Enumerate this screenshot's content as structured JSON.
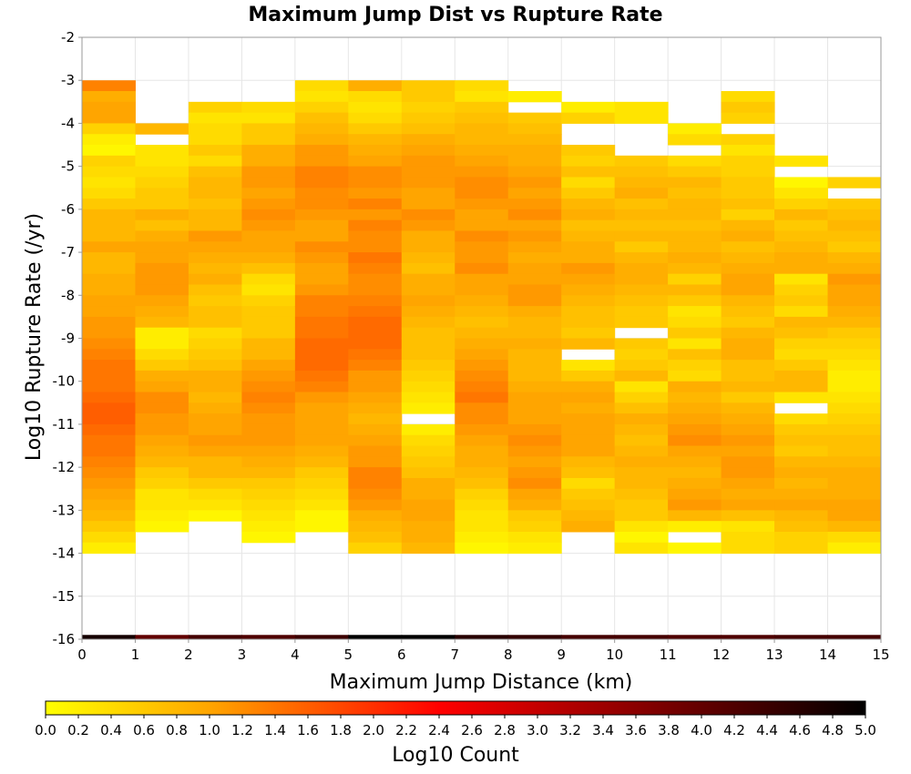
{
  "chart_data": {
    "type": "heatmap",
    "title": "Maximum Jump Dist vs Rupture Rate",
    "xlabel": "Maximum Jump Distance (km)",
    "ylabel": "Log10 Rupture Rate (/yr)",
    "xlim": [
      0,
      15
    ],
    "ylim": [
      -16,
      -2
    ],
    "x_ticks": [
      "0",
      "1",
      "2",
      "3",
      "4",
      "5",
      "6",
      "7",
      "8",
      "9",
      "10",
      "11",
      "12",
      "13",
      "14",
      "15"
    ],
    "y_ticks": [
      "-2",
      "-3",
      "-4",
      "-5",
      "-6",
      "-7",
      "-8",
      "-9",
      "-10",
      "-11",
      "-12",
      "-13",
      "-14",
      "-15",
      "-16"
    ],
    "x_bin_width": 1,
    "y_bin_width": 0.25,
    "colorbar": {
      "label": "Log10 Count",
      "range": [
        0,
        5
      ],
      "ticks": [
        "0.0",
        "0.2",
        "0.4",
        "0.6",
        "0.8",
        "1.0",
        "1.2",
        "1.4",
        "1.6",
        "1.8",
        "2.0",
        "2.2",
        "2.4",
        "2.6",
        "2.8",
        "3.0",
        "3.2",
        "3.4",
        "3.6",
        "3.8",
        "4.0",
        "4.2",
        "4.4",
        "4.6",
        "4.8",
        "5.0"
      ],
      "colors": [
        "#ffff00",
        "#ffa500",
        "#ff0000",
        "#800000",
        "#000000"
      ]
    },
    "grid": true,
    "column_lower_bin_value": [
      4.8,
      4.0,
      4.3,
      4.2,
      4.4,
      5.0,
      5.0,
      4.6,
      4.5,
      4.3,
      4.3,
      4.2,
      4.2,
      4.3,
      4.3
    ],
    "column_bin_count": 44,
    "columns": [
      [
        1.3,
        0.9,
        1.0,
        1.0,
        0.5,
        0.2,
        0.1,
        0.5,
        0.4,
        0.3,
        0.4,
        0.6,
        0.8,
        0.8,
        0.8,
        1.0,
        0.8,
        0.8,
        0.9,
        0.9,
        1.0,
        1.0,
        1.1,
        1.1,
        1.2,
        1.3,
        1.4,
        1.4,
        1.4,
        1.5,
        1.6,
        1.6,
        1.5,
        1.4,
        1.4,
        1.3,
        1.2,
        1.1,
        1.0,
        0.9,
        0.8,
        0.6,
        0.4,
        0.2
      ],
      [
        null,
        null,
        null,
        null,
        0.8,
        null,
        0.3,
        0.3,
        0.4,
        0.5,
        0.6,
        0.6,
        0.9,
        0.7,
        0.9,
        1.0,
        1.0,
        1.1,
        1.1,
        1.1,
        1.0,
        0.9,
        0.8,
        0.2,
        0.2,
        0.4,
        0.6,
        0.9,
        1.0,
        1.2,
        1.2,
        1.1,
        1.1,
        1.0,
        0.9,
        0.8,
        0.6,
        0.5,
        0.3,
        0.3,
        0.2,
        0.1,
        null,
        null
      ],
      [
        null,
        null,
        0.5,
        0.3,
        0.4,
        0.4,
        0.6,
        0.4,
        0.7,
        0.8,
        0.8,
        0.7,
        0.8,
        0.8,
        1.1,
        1.0,
        0.9,
        0.8,
        0.9,
        0.7,
        0.6,
        0.7,
        0.7,
        0.4,
        0.5,
        0.6,
        0.7,
        0.9,
        0.9,
        0.8,
        0.9,
        1.0,
        1.0,
        1.1,
        1.0,
        0.8,
        0.8,
        0.6,
        0.4,
        0.3,
        0.1,
        null,
        null,
        null
      ],
      [
        null,
        null,
        0.4,
        0.3,
        0.6,
        0.6,
        0.9,
        0.9,
        1.1,
        1.1,
        1.0,
        1.1,
        1.2,
        1.1,
        1.0,
        1.0,
        0.9,
        0.7,
        0.4,
        0.3,
        0.5,
        0.6,
        0.6,
        0.6,
        0.8,
        0.8,
        1.0,
        1.1,
        1.2,
        1.3,
        1.2,
        1.1,
        1.1,
        1.1,
        1.0,
        0.9,
        0.8,
        0.6,
        0.5,
        0.4,
        0.3,
        0.2,
        0.1,
        null
      ],
      [
        0.4,
        0.3,
        0.5,
        0.7,
        0.8,
        0.9,
        1.1,
        1.1,
        1.3,
        1.3,
        1.2,
        1.2,
        1.1,
        1.0,
        1.0,
        1.2,
        1.1,
        1.0,
        1.0,
        1.1,
        1.3,
        1.3,
        1.4,
        1.4,
        1.5,
        1.5,
        1.5,
        1.4,
        1.3,
        1.1,
        1.0,
        1.0,
        1.0,
        1.0,
        0.9,
        0.8,
        0.6,
        0.5,
        0.4,
        0.3,
        0.1,
        0.1,
        null,
        null
      ],
      [
        0.9,
        0.4,
        0.3,
        0.4,
        0.6,
        0.8,
        0.9,
        1.0,
        1.2,
        1.2,
        1.1,
        1.3,
        1.1,
        1.3,
        1.2,
        1.2,
        1.4,
        1.3,
        1.2,
        1.2,
        1.3,
        1.4,
        1.5,
        1.5,
        1.5,
        1.4,
        1.3,
        1.1,
        1.1,
        1.0,
        0.9,
        0.8,
        0.9,
        1.0,
        1.1,
        1.1,
        1.3,
        1.3,
        1.2,
        1.1,
        0.9,
        0.8,
        0.7,
        0.5
      ],
      [
        0.6,
        0.6,
        0.5,
        0.6,
        0.7,
        0.9,
        1.0,
        1.1,
        1.1,
        1.1,
        1.0,
        1.0,
        1.2,
        1.1,
        0.9,
        0.9,
        0.8,
        0.7,
        0.9,
        0.9,
        1.0,
        0.9,
        0.8,
        0.7,
        0.7,
        0.7,
        0.6,
        0.5,
        0.4,
        0.3,
        0.2,
        null,
        0.2,
        0.4,
        0.5,
        0.6,
        0.7,
        0.9,
        0.9,
        1.0,
        1.0,
        0.9,
        0.9,
        0.8
      ],
      [
        0.4,
        0.3,
        0.6,
        0.7,
        0.8,
        0.8,
        0.9,
        1.0,
        1.1,
        1.2,
        1.2,
        1.1,
        1.0,
        1.0,
        1.2,
        1.1,
        1.1,
        1.2,
        1.0,
        1.0,
        0.9,
        0.8,
        0.7,
        0.8,
        0.9,
        1.0,
        1.1,
        1.2,
        1.3,
        1.4,
        1.2,
        1.2,
        1.1,
        1.0,
        0.9,
        0.9,
        0.8,
        0.7,
        0.5,
        0.4,
        0.3,
        0.3,
        0.2,
        0.1
      ],
      [
        null,
        0.2,
        null,
        0.6,
        0.7,
        0.8,
        0.9,
        0.9,
        1.0,
        1.1,
        1.0,
        1.1,
        1.2,
        1.0,
        1.1,
        1.0,
        0.9,
        1.0,
        1.0,
        1.1,
        1.1,
        0.9,
        0.8,
        0.8,
        0.9,
        0.8,
        0.8,
        0.8,
        0.9,
        1.0,
        1.0,
        1.0,
        1.1,
        1.2,
        1.1,
        1.0,
        1.1,
        1.2,
        1.0,
        0.9,
        0.6,
        0.5,
        0.3,
        0.2
      ],
      [
        null,
        null,
        0.2,
        0.5,
        null,
        null,
        0.6,
        0.5,
        0.7,
        0.4,
        0.6,
        0.8,
        0.9,
        0.7,
        0.8,
        0.9,
        0.9,
        1.1,
        1.0,
        0.9,
        0.8,
        0.7,
        0.7,
        0.6,
        0.8,
        null,
        0.3,
        0.6,
        0.9,
        1.0,
        0.9,
        1.0,
        1.0,
        1.0,
        1.0,
        0.8,
        0.7,
        0.4,
        0.6,
        0.7,
        0.8,
        0.9,
        null,
        null
      ],
      [
        null,
        null,
        0.3,
        0.3,
        null,
        null,
        null,
        0.6,
        0.7,
        0.8,
        0.9,
        0.7,
        0.8,
        0.7,
        0.8,
        0.6,
        0.8,
        0.9,
        0.9,
        0.8,
        0.7,
        0.6,
        0.6,
        null,
        0.6,
        0.5,
        0.6,
        0.8,
        0.3,
        0.5,
        0.7,
        0.9,
        0.8,
        0.7,
        0.8,
        0.9,
        0.8,
        0.8,
        0.7,
        0.6,
        0.6,
        0.3,
        0.1,
        0.3
      ],
      [
        null,
        null,
        null,
        null,
        0.2,
        0.4,
        null,
        0.4,
        0.6,
        0.8,
        0.7,
        0.8,
        0.8,
        0.7,
        0.8,
        0.8,
        0.9,
        0.8,
        0.5,
        0.8,
        0.6,
        0.3,
        0.4,
        0.6,
        0.3,
        0.7,
        0.5,
        0.4,
        0.9,
        0.8,
        0.9,
        1.0,
        1.1,
        1.2,
        1.0,
        0.9,
        0.8,
        0.9,
        1.0,
        1.1,
        0.8,
        0.2,
        null,
        0.1
      ],
      [
        null,
        0.4,
        0.6,
        0.5,
        null,
        0.5,
        0.3,
        0.5,
        0.5,
        0.6,
        0.6,
        0.7,
        0.5,
        0.8,
        0.9,
        0.7,
        0.8,
        0.9,
        1.0,
        1.0,
        0.8,
        0.7,
        0.6,
        0.8,
        0.9,
        0.9,
        0.7,
        0.7,
        0.8,
        0.6,
        0.8,
        0.9,
        1.0,
        1.1,
        1.0,
        1.1,
        1.1,
        1.0,
        0.9,
        1.0,
        0.7,
        0.3,
        0.4,
        0.4
      ],
      [
        null,
        null,
        null,
        null,
        null,
        null,
        null,
        0.3,
        null,
        0.1,
        0.3,
        0.5,
        0.8,
        0.6,
        0.7,
        0.8,
        0.9,
        0.9,
        0.3,
        0.5,
        0.6,
        0.4,
        0.8,
        0.7,
        0.5,
        0.4,
        0.6,
        0.8,
        0.8,
        0.3,
        null,
        0.4,
        0.6,
        0.7,
        0.6,
        0.8,
        0.9,
        0.8,
        0.9,
        1.0,
        0.8,
        0.7,
        0.5,
        0.5
      ],
      [
        null,
        null,
        null,
        null,
        null,
        null,
        null,
        null,
        null,
        0.5,
        null,
        0.6,
        0.7,
        0.8,
        0.7,
        0.6,
        0.8,
        0.9,
        1.1,
        1.0,
        1.0,
        0.9,
        0.8,
        0.6,
        0.5,
        0.4,
        0.3,
        0.2,
        0.2,
        0.3,
        0.4,
        0.5,
        0.6,
        0.7,
        0.7,
        0.8,
        0.9,
        0.9,
        0.9,
        1.0,
        1.0,
        0.8,
        0.4,
        0.2
      ]
    ]
  }
}
